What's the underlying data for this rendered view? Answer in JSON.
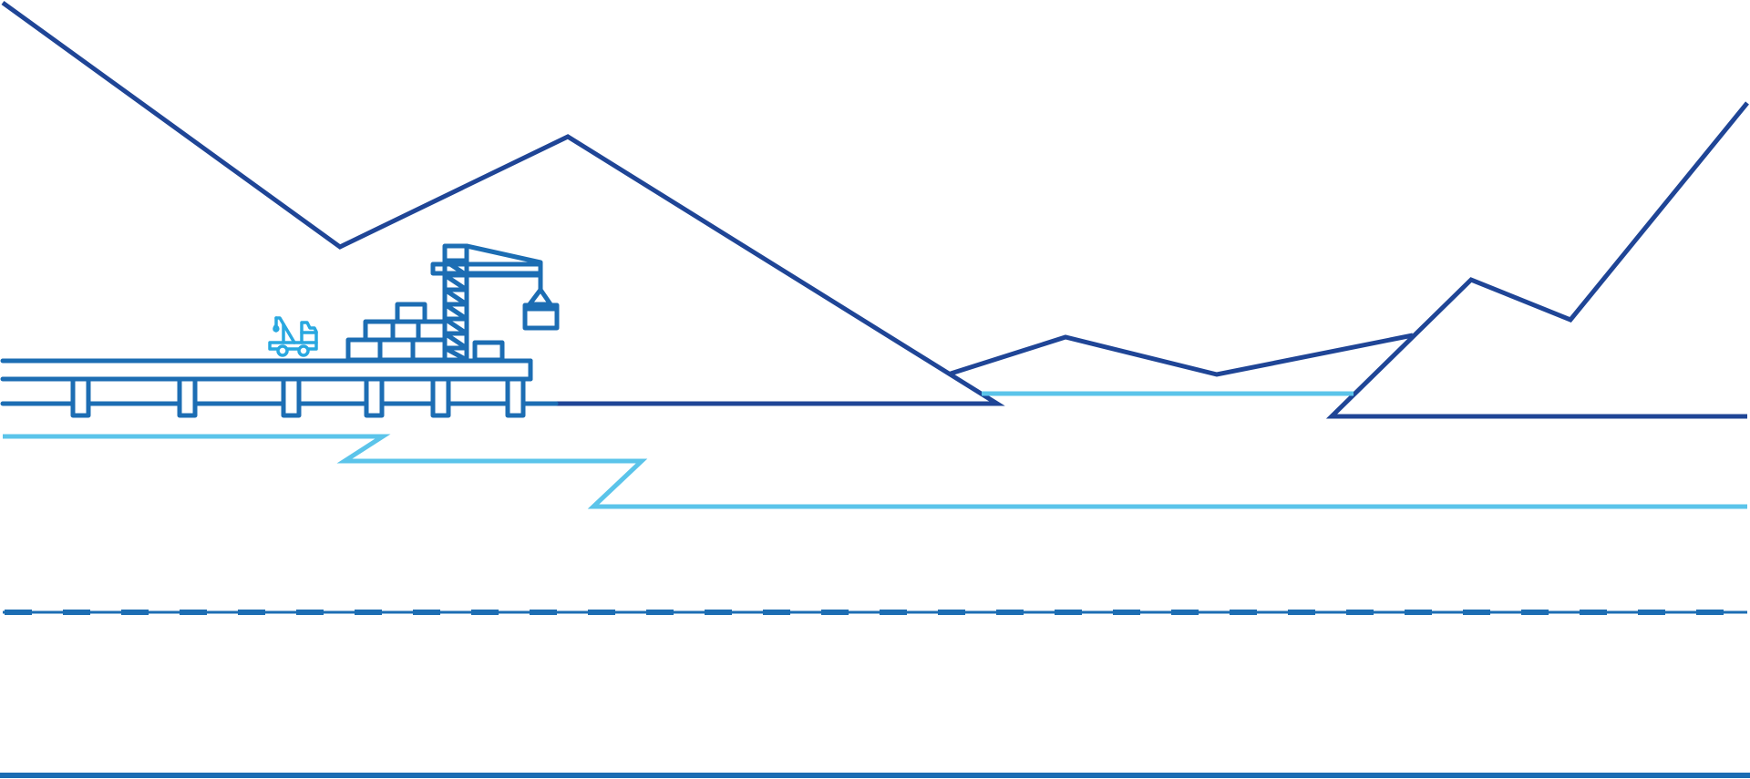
{
  "illustration": {
    "subject": "port-harbor-line-art",
    "elements": [
      "mountain-range",
      "shoreline",
      "pier",
      "gantry-crane",
      "shipping-containers",
      "tow-truck",
      "dashed-channel-line",
      "seabed-line"
    ]
  },
  "colors": {
    "navy": "#1f4596",
    "steel": "#1c6db3",
    "light": "#5bc4ea",
    "sky": "#29a8e0",
    "background": "#ffffff"
  },
  "icons": {
    "crane": "gantry-crane-icon",
    "containers": "container-stack-icon",
    "truck": "tow-truck-icon"
  }
}
